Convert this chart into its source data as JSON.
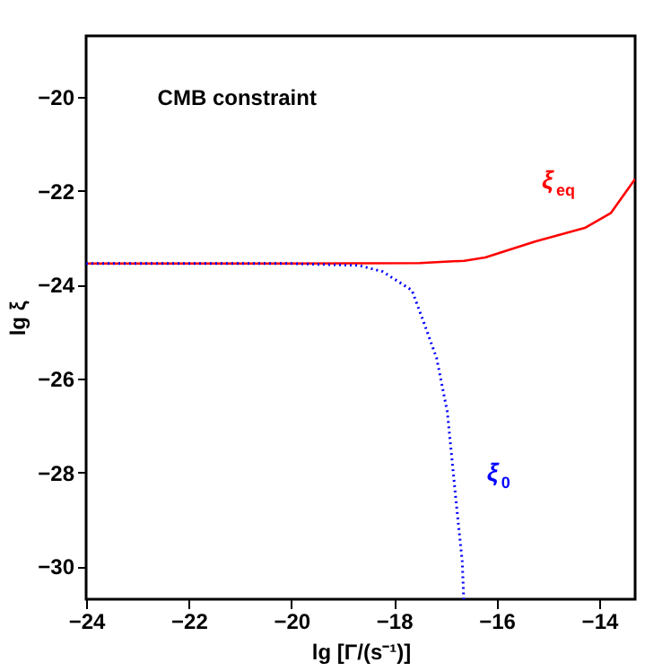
{
  "chart_data": {
    "type": "line",
    "xlabel": "lg [Γ/(s⁻¹)]",
    "ylabel": "lg ξ",
    "annotations": [
      "CMB constraint"
    ],
    "xlim": [
      -24,
      -13.3
    ],
    "ylim": [
      -30.7,
      -18.7
    ],
    "xticks": [
      -24,
      -22,
      -20,
      -18,
      -16,
      -14
    ],
    "yticks": [
      -30,
      -28,
      -26,
      -24,
      -22,
      -20
    ],
    "grid": false,
    "marker": "none",
    "series": [
      {
        "name": "ξ$_{eq}$",
        "color": "#ff0000",
        "line_style": "solid",
        "x": [
          -24,
          -20,
          -17.5,
          -16.63,
          -16.22,
          -15.25,
          -14.28,
          -13.77,
          -13.3
        ],
        "values": [
          -23.55,
          -23.55,
          -23.54,
          -23.49,
          -23.42,
          -23.08,
          -22.79,
          -22.47,
          -21.75
        ]
      },
      {
        "name": "ξ$_{0}$",
        "color": "#0000ff",
        "line_style": "dotted",
        "x": [
          -24,
          -20,
          -18.68,
          -18.22,
          -17.65,
          -17.42,
          -17.17,
          -16.96,
          -16.79,
          -16.67,
          -16.64
        ],
        "values": [
          -23.55,
          -23.55,
          -23.59,
          -23.72,
          -24.12,
          -24.8,
          -25.56,
          -26.71,
          -28.61,
          -29.89,
          -30.7
        ]
      }
    ]
  }
}
